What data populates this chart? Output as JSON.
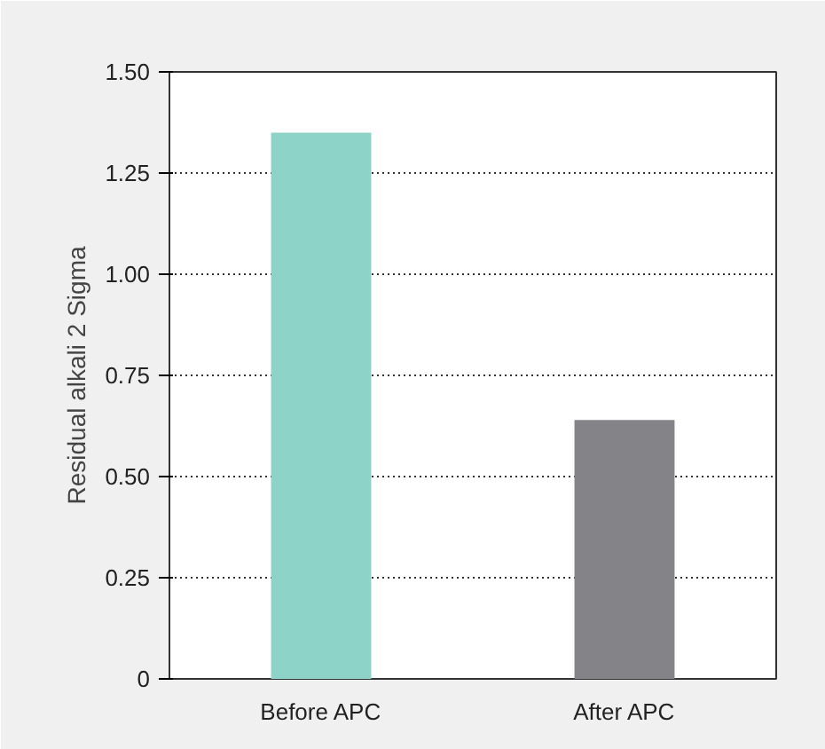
{
  "chart_data": {
    "type": "bar",
    "ylabel": "Residual alkali 2 Sigma",
    "categories": [
      "Before APC",
      "After APC"
    ],
    "values": [
      1.35,
      0.64
    ],
    "colors": [
      "#8dd3c8",
      "#848488"
    ],
    "ylim": [
      0,
      1.5
    ],
    "yticks": [
      0,
      0.25,
      {
        "value": 0.5,
        "label": "0.50"
      },
      0.75,
      {
        "value": 1.0,
        "label": "1.00"
      },
      1.25,
      {
        "value": 1.5,
        "label": "1.50"
      }
    ],
    "grid": "y"
  }
}
